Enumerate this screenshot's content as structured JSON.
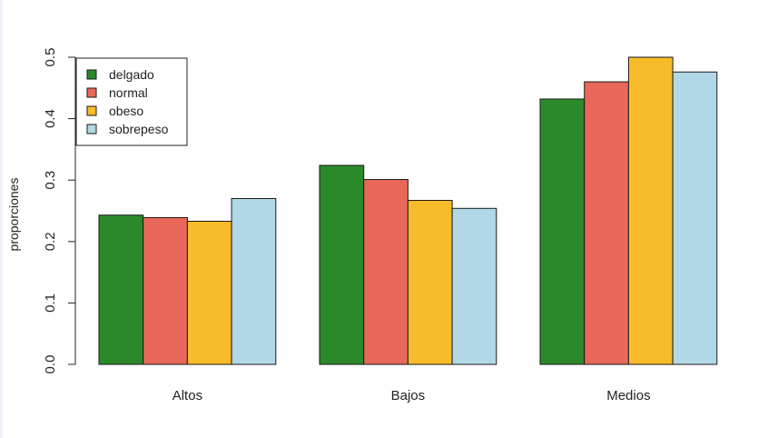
{
  "chart_data": {
    "type": "bar",
    "categories": [
      "Altos",
      "Bajos",
      "Medios"
    ],
    "series": [
      {
        "name": "delgado",
        "values": [
          0.243,
          0.324,
          0.432
        ],
        "color": "#2a8a2a"
      },
      {
        "name": "normal",
        "values": [
          0.239,
          0.301,
          0.46
        ],
        "color": "#e8685a"
      },
      {
        "name": "obeso",
        "values": [
          0.233,
          0.267,
          0.5
        ],
        "color": "#f8bb2a"
      },
      {
        "name": "sobrepeso",
        "values": [
          0.27,
          0.254,
          0.476
        ],
        "color": "#b2d8e8"
      }
    ],
    "yticks": [
      "0.0",
      "0.1",
      "0.2",
      "0.3",
      "0.4",
      "0.5"
    ],
    "ylim": [
      0,
      0.5
    ],
    "title": "",
    "xlabel": "",
    "ylabel": "proporciones",
    "legend_position": "top-left",
    "grid": false
  }
}
